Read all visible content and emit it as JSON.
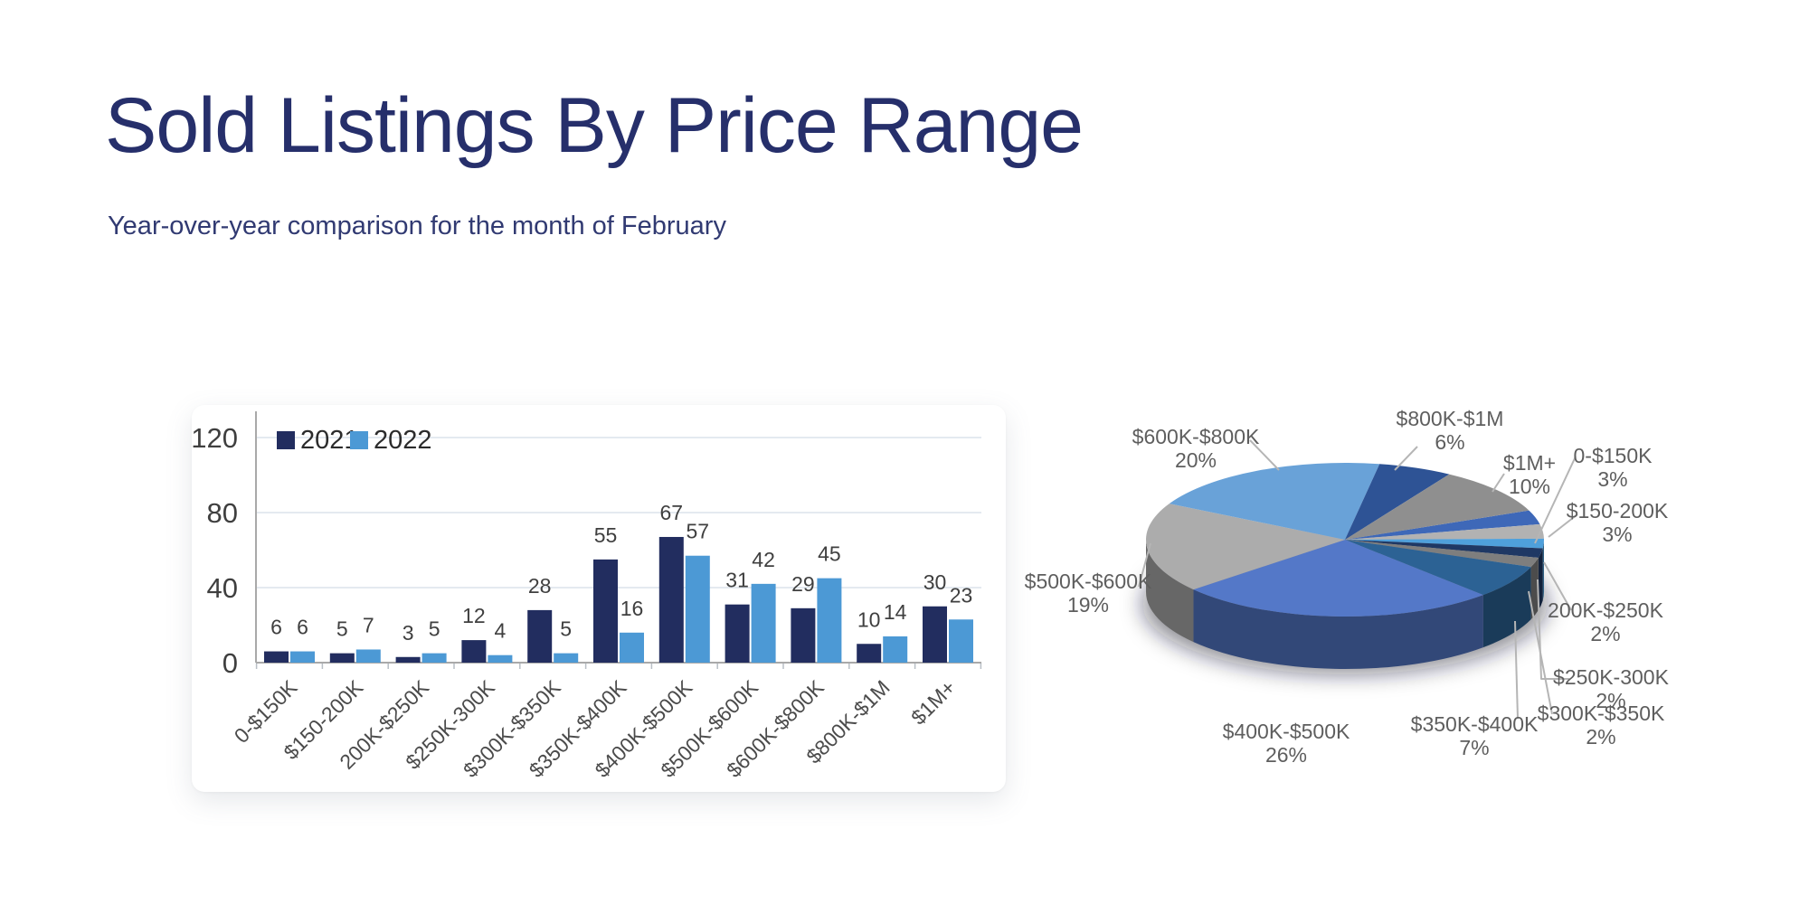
{
  "slide": {
    "title": "Sold Listings By Price Range",
    "subtitle": "Year-over-year comparison for the month of February",
    "title_color": "#262F6B",
    "subtitle_color": "#313A72",
    "background": "#FFFFFF"
  },
  "chart_data": [
    {
      "type": "bar",
      "categories": [
        "0-$150K",
        "$150-200K",
        "200K-$250K",
        "$250K-300K",
        "$300K-$350K",
        "$350K-$400K",
        "$400K-$500K",
        "$500K-$600K",
        "$600K-$800K",
        "$800K-$1M",
        "$1M+"
      ],
      "series": [
        {
          "name": "2021",
          "color": "#222D5F",
          "values": [
            6,
            5,
            3,
            12,
            28,
            55,
            67,
            31,
            29,
            10,
            30
          ]
        },
        {
          "name": "2022",
          "color": "#4C99D5",
          "values": [
            6,
            7,
            5,
            4,
            5,
            16,
            57,
            42,
            45,
            14,
            23
          ]
        }
      ],
      "xlabel": "",
      "ylabel": "",
      "ylim": [
        0,
        120
      ],
      "yticks": [
        0,
        40,
        80,
        120
      ],
      "grid": "horizontal",
      "legend_position": "top-left",
      "bar_value_labels": true
    },
    {
      "type": "pie",
      "style": "3d",
      "labels": [
        "0-$150K",
        "$150-200K",
        "200K-$250K",
        "$250K-300K",
        "$300K-$350K",
        "$350K-$400K",
        "$400K-$500K",
        "$500K-$600K",
        "$600K-$800K",
        "$800K-$1M",
        "$1M+"
      ],
      "values": [
        3,
        3,
        2,
        2,
        2,
        7,
        26,
        19,
        20,
        6,
        10
      ],
      "unit": "%",
      "colors": [
        "#3E68B8",
        "#B2B2B2",
        "#4FA0DB",
        "#1F3864",
        "#7E7E7E",
        "#2C6294",
        "#5478C8",
        "#ACACAC",
        "#69A2D8",
        "#2E5395",
        "#8F8F8F"
      ],
      "order": "clockwise",
      "start_angle_deg": 67.6,
      "label_format": "name and percent on two lines"
    }
  ]
}
